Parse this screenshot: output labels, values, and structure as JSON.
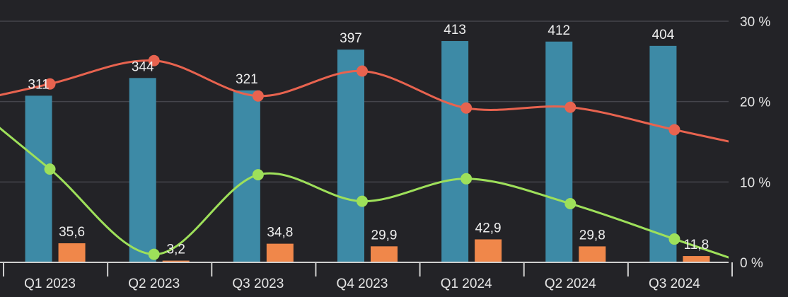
{
  "chart_data": {
    "type": "bar",
    "categories": [
      "Q1 2023",
      "Q2 2023",
      "Q3 2023",
      "Q4 2023",
      "Q1 2024",
      "Q2 2024",
      "Q3 2024"
    ],
    "series": [
      {
        "kind": "bar",
        "axis": "left",
        "values": [
          311,
          344,
          321,
          397,
          413,
          412,
          404
        ],
        "labels": [
          "311",
          "344",
          "321",
          "397",
          "413",
          "412",
          "404"
        ],
        "color": "#3d8aa6"
      },
      {
        "kind": "bar",
        "axis": "left",
        "values": [
          35.6,
          3.2,
          34.8,
          29.9,
          42.9,
          29.8,
          11.8
        ],
        "labels": [
          "35,6",
          "3,2",
          "34,8",
          "29,9",
          "42,9",
          "29,8",
          "11,8"
        ],
        "color": "#f0874a"
      },
      {
        "kind": "line",
        "axis": "right",
        "values": [
          22.2,
          25.1,
          20.7,
          23.8,
          19.2,
          19.3,
          16.5
        ],
        "color": "#e8634f"
      },
      {
        "kind": "line",
        "axis": "right",
        "values": [
          11.6,
          1.0,
          10.9,
          7.6,
          10.4,
          7.3,
          2.9
        ],
        "color": "#9ee05a"
      }
    ],
    "left_ylim": [
      0,
      450
    ],
    "right_ylim": [
      0,
      30
    ],
    "right_ticks": [
      "0 %",
      "10 %",
      "20 %",
      "30 %"
    ],
    "grid": true
  }
}
